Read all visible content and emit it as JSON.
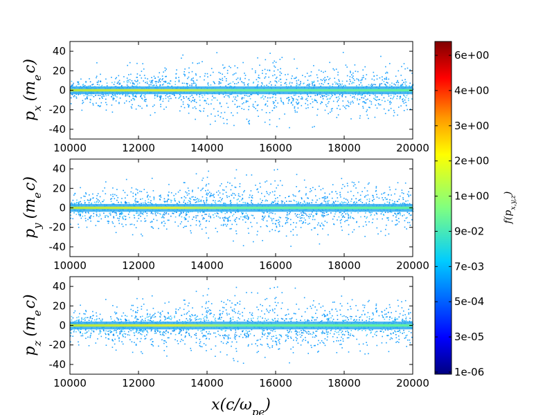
{
  "chart_data": [
    {
      "type": "heatmap",
      "panel": "px",
      "ylabel": "p_x (m_e c)",
      "xlim": [
        10000,
        20000
      ],
      "ylim": [
        -50,
        50
      ],
      "xticks": [
        10000,
        12000,
        14000,
        16000,
        18000,
        20000
      ],
      "yticks": [
        40,
        20,
        0,
        -20,
        -40
      ],
      "band": {
        "center": 0,
        "core_halfwidth": 4,
        "scatter_max": 40
      }
    },
    {
      "type": "heatmap",
      "panel": "py",
      "ylabel": "p_y (m_e c)",
      "xlim": [
        10000,
        20000
      ],
      "ylim": [
        -50,
        50
      ],
      "xticks": [
        10000,
        12000,
        14000,
        16000,
        18000,
        20000
      ],
      "yticks": [
        40,
        20,
        0,
        -20,
        -40
      ],
      "band": {
        "center": 0,
        "core_halfwidth": 4,
        "scatter_max": 40
      }
    },
    {
      "type": "heatmap",
      "panel": "pz",
      "ylabel": "p_z (m_e c)",
      "xlim": [
        10000,
        20000
      ],
      "ylim": [
        -50,
        50
      ],
      "xticks": [
        10000,
        12000,
        14000,
        16000,
        18000,
        20000
      ],
      "yticks": [
        40,
        20,
        0,
        -20,
        -40
      ],
      "xlabel": "x(c/ω_pe)",
      "band": {
        "center": 0,
        "core_halfwidth": 4,
        "scatter_max": 40
      }
    }
  ],
  "colorbar": {
    "label": "f(p_x,y,z)",
    "scale": "log",
    "ticks": [
      "6e+00",
      "4e+00",
      "3e+00",
      "2e+00",
      "1e+00",
      "9e-02",
      "7e-03",
      "5e-04",
      "3e-05",
      "1e-06"
    ],
    "colormap": [
      "#7f0000",
      "#ff0000",
      "#ff8000",
      "#ffff00",
      "#80ff80",
      "#00ffff",
      "#0080ff",
      "#0000ff",
      "#00007f"
    ]
  },
  "labels": {
    "py": "p",
    "px_sub": "x",
    "py_sub": "y",
    "pz_sub": "z",
    "units_open": "(m",
    "units_sub": "e",
    "units_close": "c)",
    "xlabel_main": "x(c/ω",
    "xlabel_sub": "pe",
    "xlabel_close": ")",
    "cb_main": "f(p",
    "cb_sub": "x,y,z",
    "cb_close": ")"
  }
}
